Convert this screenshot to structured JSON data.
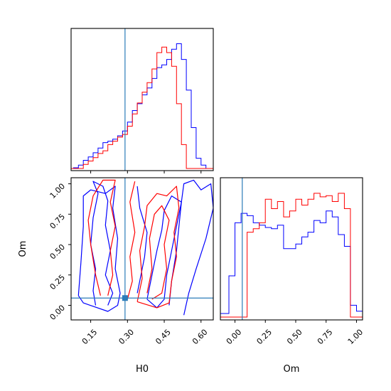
{
  "chart_data": [
    {
      "type": "histogram",
      "panel": "H0-marginal",
      "xlim": [
        0.07,
        0.65
      ],
      "grid": false,
      "truth_x": 0.29,
      "series": [
        {
          "color": "#0000ff",
          "edges": [
            0.05,
            0.08,
            0.1,
            0.12,
            0.14,
            0.16,
            0.18,
            0.2,
            0.22,
            0.24,
            0.26,
            0.28,
            0.3,
            0.32,
            0.34,
            0.36,
            0.38,
            0.4,
            0.42,
            0.44,
            0.46,
            0.48,
            0.5,
            0.52,
            0.54,
            0.56,
            0.58,
            0.6,
            0.62,
            0.66
          ],
          "values": [
            0,
            1,
            5,
            12,
            17,
            23,
            30,
            38,
            40,
            43,
            48,
            55,
            68,
            85,
            95,
            108,
            118,
            132,
            148,
            152,
            160,
            175,
            183,
            160,
            115,
            60,
            15,
            5,
            0
          ]
        },
        {
          "color": "#ff0000",
          "edges": [
            0.05,
            0.12,
            0.14,
            0.16,
            0.18,
            0.2,
            0.22,
            0.24,
            0.26,
            0.28,
            0.3,
            0.32,
            0.34,
            0.36,
            0.38,
            0.4,
            0.42,
            0.44,
            0.46,
            0.48,
            0.5,
            0.52,
            0.54,
            0.56,
            0.66
          ],
          "values": [
            0,
            6,
            11,
            16,
            22,
            26,
            35,
            40,
            46,
            50,
            62,
            80,
            96,
            112,
            126,
            146,
            170,
            178,
            170,
            150,
            95,
            35,
            0,
            0
          ]
        }
      ]
    },
    {
      "type": "contour",
      "panel": "H0-Om-joint",
      "xlim": [
        0.07,
        0.65
      ],
      "ylim": [
        -0.12,
        1.05
      ],
      "xlabel": "H0",
      "ylabel": "Om",
      "xticks": [
        "0.15",
        "0.30",
        "0.45",
        "0.60"
      ],
      "yticks": [
        "0.00",
        "0.25",
        "0.50",
        "0.75",
        "1.00"
      ],
      "truth": {
        "x": 0.29,
        "y": 0.06
      },
      "series": [
        {
          "color": "#0000ff",
          "contours": [
            [
              [
                0.17,
                0.0
              ],
              [
                0.16,
                0.12
              ],
              [
                0.17,
                0.3
              ],
              [
                0.15,
                0.5
              ],
              [
                0.16,
                0.72
              ],
              [
                0.18,
                0.92
              ],
              [
                0.16,
                1.02
              ],
              [
                0.2,
                0.98
              ],
              [
                0.22,
                0.86
              ],
              [
                0.21,
                0.66
              ],
              [
                0.23,
                0.45
              ],
              [
                0.21,
                0.25
              ],
              [
                0.24,
                0.1
              ],
              [
                0.22,
                0.0
              ]
            ],
            [
              [
                0.1,
                0.08
              ],
              [
                0.11,
                0.35
              ],
              [
                0.12,
                0.65
              ],
              [
                0.12,
                0.9
              ],
              [
                0.15,
                0.95
              ],
              [
                0.21,
                0.92
              ],
              [
                0.25,
                0.98
              ],
              [
                0.24,
                0.8
              ],
              [
                0.26,
                0.55
              ],
              [
                0.25,
                0.3
              ],
              [
                0.27,
                0.1
              ],
              [
                0.26,
                0.0
              ],
              [
                0.22,
                -0.05
              ],
              [
                0.12,
                0.02
              ],
              [
                0.1,
                0.08
              ]
            ],
            [
              [
                0.47,
                0.0
              ],
              [
                0.48,
                0.2
              ],
              [
                0.5,
                0.45
              ],
              [
                0.51,
                0.65
              ],
              [
                0.52,
                0.85
              ],
              [
                0.53,
                1.0
              ],
              [
                0.57,
                1.03
              ],
              [
                0.6,
                0.95
              ],
              [
                0.64,
                1.0
              ],
              [
                0.65,
                0.8
              ],
              [
                0.62,
                0.55
              ],
              [
                0.58,
                0.3
              ],
              [
                0.55,
                0.1
              ],
              [
                0.53,
                -0.08
              ]
            ],
            [
              [
                0.38,
                0.05
              ],
              [
                0.4,
                0.25
              ],
              [
                0.42,
                0.45
              ],
              [
                0.44,
                0.62
              ],
              [
                0.45,
                0.78
              ],
              [
                0.48,
                0.9
              ],
              [
                0.52,
                0.85
              ],
              [
                0.5,
                0.65
              ],
              [
                0.48,
                0.45
              ],
              [
                0.46,
                0.25
              ],
              [
                0.45,
                0.05
              ],
              [
                0.42,
                -0.02
              ],
              [
                0.38,
                0.05
              ]
            ],
            [
              [
                0.34,
                0.98
              ],
              [
                0.35,
                0.8
              ],
              [
                0.38,
                0.6
              ],
              [
                0.37,
                0.4
              ],
              [
                0.35,
                0.2
              ],
              [
                0.34,
                0.1
              ]
            ]
          ]
        },
        {
          "color": "#ff0000",
          "contours": [
            [
              [
                0.19,
                0.08
              ],
              [
                0.17,
                0.25
              ],
              [
                0.15,
                0.5
              ],
              [
                0.14,
                0.7
              ],
              [
                0.16,
                0.9
              ],
              [
                0.2,
                1.03
              ],
              [
                0.25,
                1.03
              ],
              [
                0.23,
                0.85
              ],
              [
                0.25,
                0.65
              ],
              [
                0.23,
                0.45
              ],
              [
                0.24,
                0.25
              ],
              [
                0.22,
                0.08
              ]
            ],
            [
              [
                0.34,
                0.03
              ],
              [
                0.36,
                0.22
              ],
              [
                0.35,
                0.45
              ],
              [
                0.37,
                0.65
              ],
              [
                0.38,
                0.82
              ],
              [
                0.42,
                0.92
              ],
              [
                0.46,
                0.9
              ],
              [
                0.5,
                0.98
              ],
              [
                0.51,
                0.8
              ],
              [
                0.49,
                0.6
              ],
              [
                0.5,
                0.4
              ],
              [
                0.48,
                0.2
              ],
              [
                0.47,
                0.02
              ],
              [
                0.42,
                -0.02
              ],
              [
                0.34,
                0.03
              ]
            ],
            [
              [
                0.38,
                0.1
              ],
              [
                0.4,
                0.3
              ],
              [
                0.39,
                0.55
              ],
              [
                0.41,
                0.75
              ],
              [
                0.44,
                0.82
              ],
              [
                0.47,
                0.7
              ],
              [
                0.45,
                0.5
              ],
              [
                0.46,
                0.3
              ],
              [
                0.44,
                0.1
              ],
              [
                0.4,
                0.05
              ]
            ],
            [
              [
                0.33,
                1.02
              ],
              [
                0.31,
                0.85
              ],
              [
                0.33,
                0.6
              ],
              [
                0.31,
                0.4
              ],
              [
                0.32,
                0.2
              ],
              [
                0.3,
                0.05
              ]
            ]
          ]
        }
      ]
    },
    {
      "type": "histogram",
      "panel": "Om-marginal",
      "xlim": [
        -0.12,
        1.05
      ],
      "xlabel": "Om",
      "xticks": [
        "0.00",
        "0.25",
        "0.50",
        "0.75",
        "1.00"
      ],
      "grid": false,
      "truth_x": 0.06,
      "series": [
        {
          "color": "#0000ff",
          "edges": [
            -0.15,
            -0.05,
            0.0,
            0.05,
            0.1,
            0.15,
            0.2,
            0.25,
            0.3,
            0.35,
            0.4,
            0.45,
            0.5,
            0.55,
            0.6,
            0.65,
            0.7,
            0.75,
            0.8,
            0.85,
            0.9,
            0.95,
            1.0,
            1.05
          ],
          "values": [
            0.03,
            0.35,
            0.8,
            0.88,
            0.86,
            0.8,
            0.78,
            0.76,
            0.75,
            0.78,
            0.58,
            0.58,
            0.62,
            0.68,
            0.72,
            0.82,
            0.8,
            0.9,
            0.85,
            0.7,
            0.6,
            0.1,
            0.05
          ]
        },
        {
          "color": "#ff0000",
          "edges": [
            -0.15,
            -0.05,
            0.0,
            0.05,
            0.1,
            0.15,
            0.2,
            0.25,
            0.3,
            0.35,
            0.4,
            0.45,
            0.5,
            0.55,
            0.6,
            0.65,
            0.7,
            0.75,
            0.8,
            0.85,
            0.9,
            0.95,
            1.0,
            1.05
          ],
          "values": [
            0.0,
            0.0,
            0.0,
            0.0,
            0.72,
            0.75,
            0.8,
            1.0,
            0.92,
            0.98,
            0.85,
            0.9,
            1.0,
            0.95,
            1.0,
            1.05,
            1.02,
            1.03,
            0.98,
            1.05,
            0.92,
            0.0,
            0.0
          ]
        }
      ]
    }
  ]
}
